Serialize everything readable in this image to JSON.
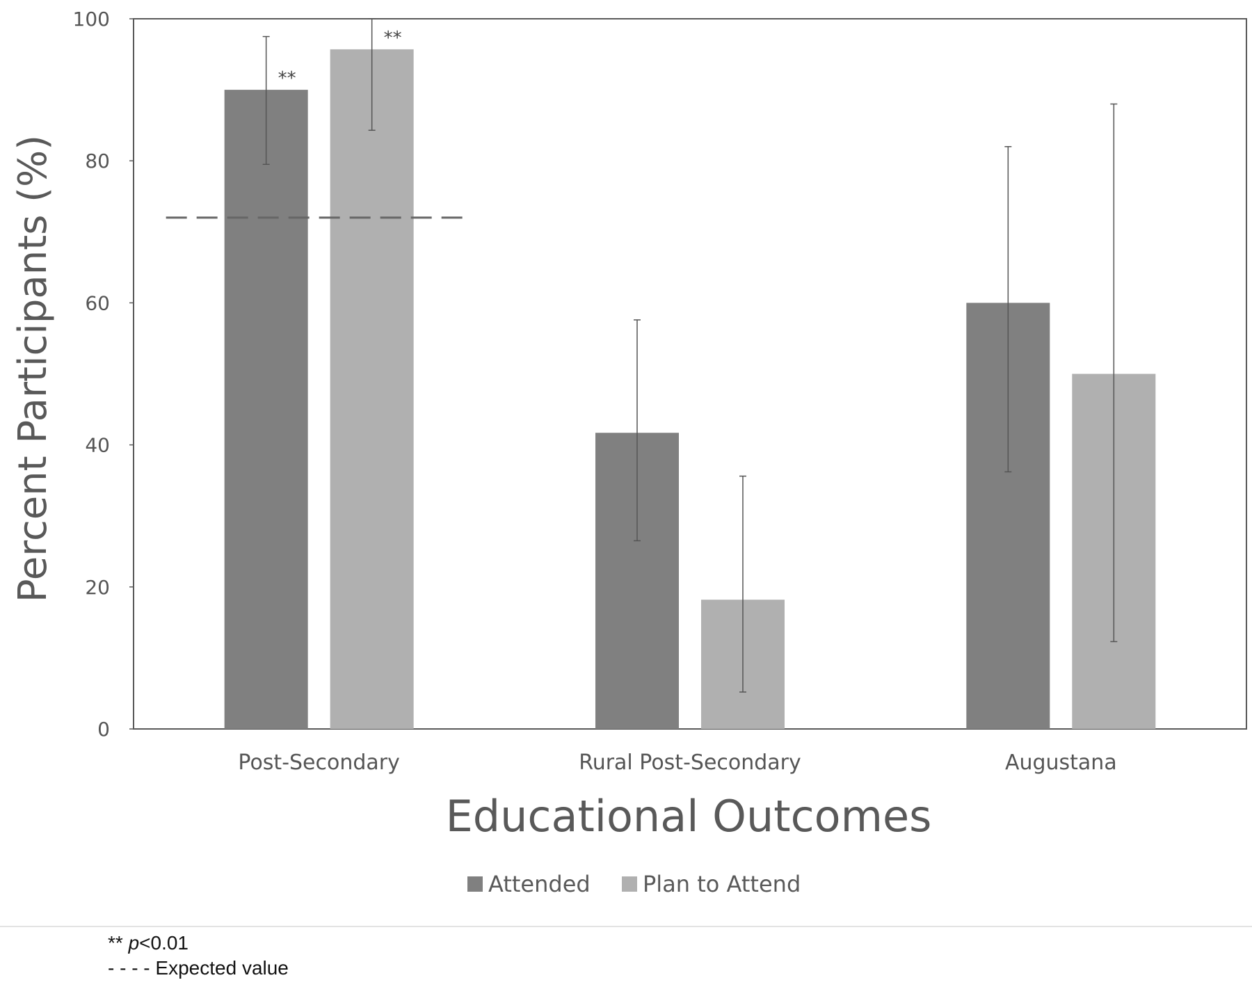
{
  "chart_data": {
    "type": "bar",
    "title": "",
    "xlabel": "Educational Outcomes",
    "ylabel": "Percent Participants (%)",
    "ylim": [
      0,
      100
    ],
    "yticks": [
      0,
      20,
      40,
      60,
      80,
      100
    ],
    "categories": [
      "Post-Secondary",
      "Rural Post-Secondary",
      "Augustana"
    ],
    "series": [
      {
        "name": "Attended",
        "color": "#808080",
        "values": [
          90,
          41.7,
          60
        ],
        "error_low": [
          79.5,
          26.5,
          36.2
        ],
        "error_high": [
          97.5,
          57.6,
          82
        ],
        "significance": [
          "**",
          "",
          ""
        ]
      },
      {
        "name": "Plan to Attend",
        "color": "#b0b0b0",
        "values": [
          95.7,
          18.2,
          50
        ],
        "error_low": [
          84.3,
          5.2,
          12.3
        ],
        "error_high": [
          100,
          35.6,
          88
        ],
        "significance": [
          "**",
          "",
          ""
        ]
      }
    ],
    "expected_value": {
      "value": 72,
      "category": "Post-Secondary",
      "style": "dashed"
    },
    "grid": false,
    "legend_position": "bottom"
  },
  "notes": {
    "significance_prefix": "** ",
    "significance_p": "p",
    "significance_value": "<0.01",
    "expected_line": "- - - - Expected value"
  }
}
